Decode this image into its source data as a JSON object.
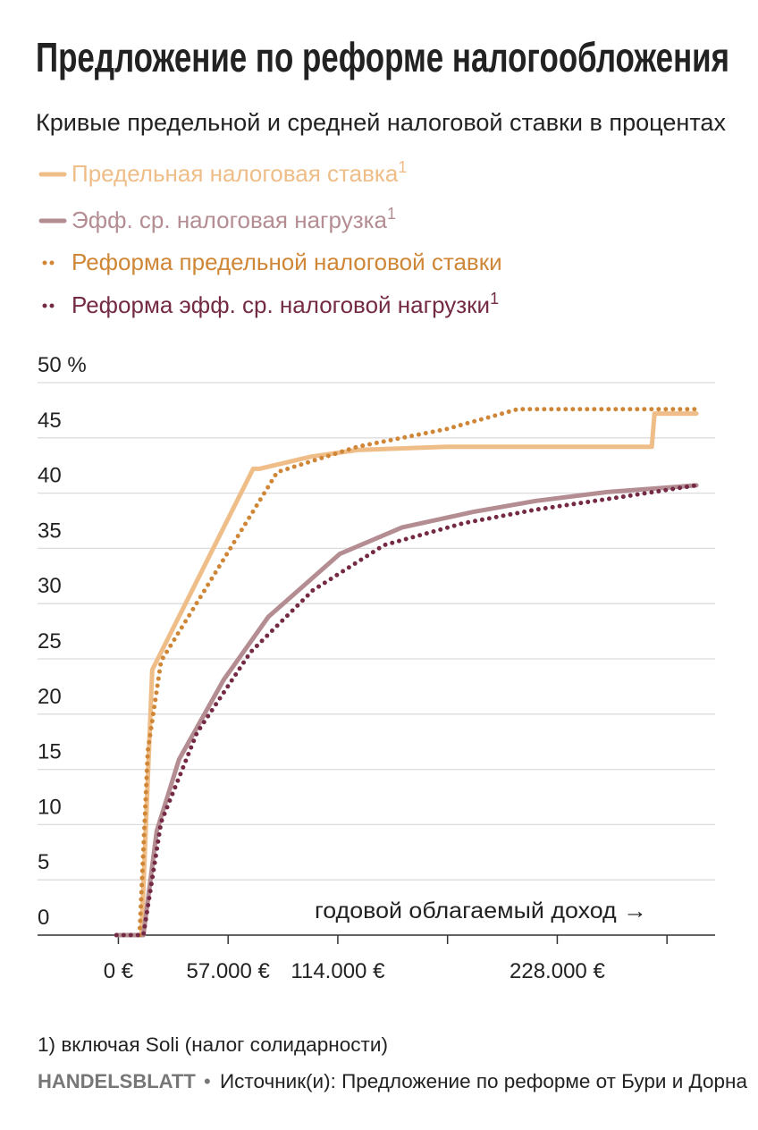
{
  "chart_data": {
    "type": "line",
    "title": "Предложение по реформе налогообложения",
    "subtitle": "Кривые предельной и средней налоговой ставки в процентах",
    "annotation": "годовой облагаемый доход →",
    "footnote": "1) включая Soli (налог солидарности)",
    "source": {
      "brand": "HANDELSBLATT",
      "separator": "•",
      "text": "Источник(и): Предложение по реформе от Бури и Дорна"
    },
    "xlim": [
      -42000,
      310000
    ],
    "ylim": [
      0,
      50
    ],
    "xticks": [
      {
        "value": 0,
        "label": "0 €"
      },
      {
        "value": 57000,
        "label": "57.000 €"
      },
      {
        "value": 114000,
        "label": "114.000 €"
      },
      {
        "value": 171000,
        "label": null
      },
      {
        "value": 228000,
        "label": "228.000 €"
      },
      {
        "value": 285000,
        "label": null
      }
    ],
    "yticks": [
      0,
      5,
      10,
      15,
      20,
      25,
      30,
      35,
      40,
      45,
      {
        "value": 50,
        "label": "50 %"
      }
    ],
    "grid": true,
    "series": [
      {
        "name": "Предельная налоговая ставка",
        "name_note": "1",
        "color": "#efbd88",
        "style": "solid",
        "x": [
          -1000,
          12000,
          17600,
          70000,
          73200,
          100000,
          124200,
          170500,
          277100,
          278500,
          300300
        ],
        "values": [
          0,
          0,
          24,
          42.2,
          42.2,
          43.3,
          43.9,
          44.2,
          44.2,
          47.2,
          47.2
        ]
      },
      {
        "name": "Эфф. ср. налоговая нагрузка",
        "name_note": "1",
        "color": "#b48d93",
        "style": "solid",
        "x": [
          -1000,
          13000,
          19900,
          31500,
          54700,
          77900,
          115000,
          147400,
          184400,
          216900,
          254000,
          300300
        ],
        "values": [
          0,
          0,
          9.4,
          15.9,
          23.1,
          28.8,
          34.5,
          36.9,
          38.3,
          39.3,
          40.1,
          40.7
        ]
      },
      {
        "name": "Реформа предельной налоговой ставки",
        "name_note": null,
        "color": "#cf8636",
        "style": "dotted",
        "x": [
          11000,
          15300,
          22200,
          82500,
          124200,
          170500,
          207600,
          300300
        ],
        "values": [
          0,
          16.7,
          24.8,
          41.9,
          44.2,
          45.8,
          47.6,
          47.6
        ]
      },
      {
        "name": "Реформа эфф. ср. налоговой нагрузки",
        "name_note": "1",
        "color": "#742a45",
        "style": "dotted",
        "x": [
          -1000,
          13000,
          22200,
          40800,
          68600,
          101000,
          138100,
          179800,
          216900,
          263200,
          300300
        ],
        "values": [
          0,
          0,
          10.2,
          18.3,
          25.6,
          31.2,
          35.3,
          37.3,
          38.5,
          39.7,
          40.7
        ]
      }
    ]
  }
}
